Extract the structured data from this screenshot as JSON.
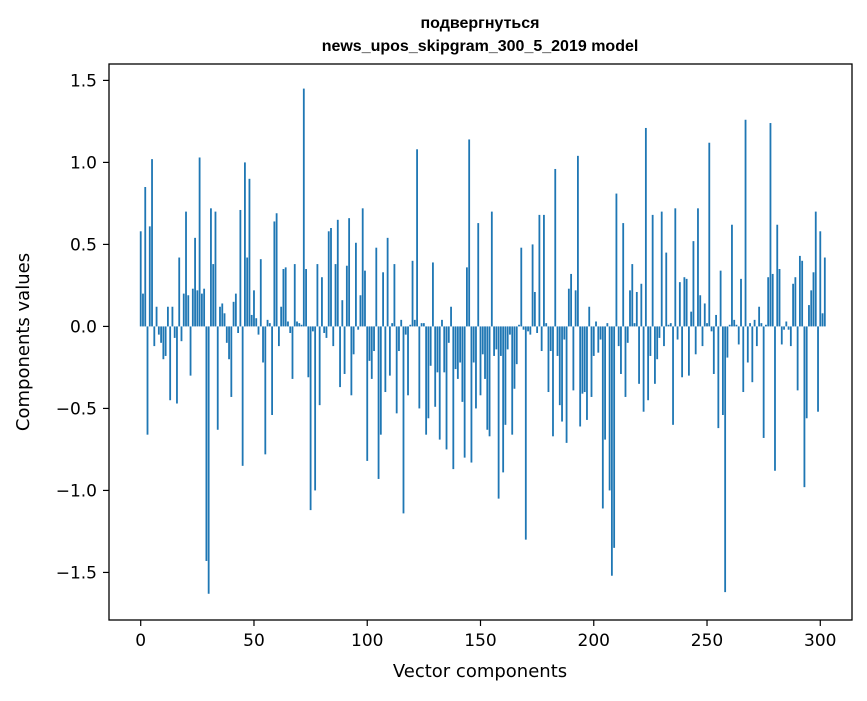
{
  "chart_data": {
    "type": "bar",
    "title_line1": "подвергнуться",
    "title_line2": "news_upos_skipgram_300_5_2019 model",
    "xlabel": "Vector components",
    "ylabel": "Components values",
    "xlim": [
      -14,
      314
    ],
    "ylim": [
      -1.79,
      1.6
    ],
    "xticks": [
      0,
      50,
      100,
      150,
      200,
      250,
      300
    ],
    "xtick_labels": [
      "0",
      "50",
      "100",
      "150",
      "200",
      "250",
      "300"
    ],
    "yticks": [
      -1.5,
      -1.0,
      -0.5,
      0.0,
      0.5,
      1.0,
      1.5
    ],
    "ytick_labels": [
      "−1.5",
      "−1.0",
      "−0.5",
      "0.0",
      "0.5",
      "1.0",
      "1.5"
    ],
    "grid": false,
    "bar_color": "#1f77b4",
    "values": [
      0.58,
      0.2,
      0.85,
      -0.66,
      0.61,
      1.02,
      -0.12,
      0.12,
      -0.05,
      -0.1,
      -0.2,
      -0.18,
      0.12,
      -0.45,
      0.12,
      -0.07,
      -0.47,
      0.42,
      -0.09,
      0.2,
      0.7,
      0.19,
      -0.3,
      0.23,
      0.54,
      0.22,
      1.03,
      0.2,
      0.23,
      -1.43,
      -1.63,
      0.72,
      0.38,
      0.7,
      -0.63,
      0.12,
      0.14,
      0.08,
      -0.1,
      -0.2,
      -0.43,
      0.15,
      0.2,
      -0.04,
      0.71,
      -0.85,
      1.0,
      0.42,
      0.9,
      0.07,
      0.22,
      0.05,
      -0.05,
      0.41,
      -0.22,
      -0.78,
      0.04,
      0.02,
      -0.54,
      0.64,
      0.69,
      -0.12,
      0.12,
      0.35,
      0.36,
      0.03,
      -0.04,
      -0.32,
      0.38,
      0.03,
      0.02,
      0.01,
      1.45,
      0.35,
      -0.31,
      -1.12,
      -0.03,
      -1.0,
      0.38,
      -0.48,
      0.3,
      -0.04,
      -0.07,
      0.58,
      0.6,
      -0.12,
      0.38,
      0.65,
      -0.37,
      0.16,
      -0.29,
      0.37,
      0.66,
      -0.42,
      -0.17,
      0.51,
      -0.02,
      0.19,
      0.72,
      0.34,
      -0.82,
      -0.21,
      -0.32,
      -0.15,
      0.48,
      -0.93,
      -0.66,
      0.33,
      -0.4,
      0.54,
      -0.3,
      0.02,
      0.38,
      -0.53,
      -0.15,
      0.04,
      -1.14,
      -0.05,
      -0.42,
      0.01,
      0.4,
      0.04,
      1.08,
      -0.5,
      0.02,
      0.02,
      -0.66,
      -0.56,
      -0.24,
      0.39,
      -0.49,
      -0.28,
      -0.69,
      0.04,
      -0.28,
      -0.75,
      -0.1,
      0.12,
      -0.87,
      -0.26,
      -0.32,
      -0.22,
      -0.46,
      -0.8,
      0.36,
      1.14,
      -0.83,
      -0.22,
      -0.5,
      0.63,
      -0.42,
      -0.17,
      -0.32,
      -0.63,
      -0.67,
      0.7,
      -0.18,
      -0.14,
      -1.05,
      -0.18,
      -0.89,
      -0.6,
      -0.14,
      -0.05,
      -0.66,
      -0.38,
      -0.23,
      0.01,
      0.48,
      -0.02,
      -1.3,
      -0.03,
      -0.05,
      0.5,
      0.21,
      -0.04,
      0.68,
      -0.15,
      0.68,
      0.02,
      -0.4,
      -0.15,
      -0.67,
      0.96,
      -0.18,
      -0.48,
      -0.58,
      -0.08,
      -0.71,
      0.23,
      0.32,
      -0.39,
      0.22,
      1.04,
      -0.61,
      -0.41,
      -0.4,
      -0.57,
      0.12,
      -0.43,
      -0.18,
      0.03,
      -0.16,
      -0.08,
      -1.11,
      -0.69,
      0.02,
      -1.0,
      -1.52,
      -1.35,
      0.81,
      -0.12,
      -0.29,
      0.63,
      -0.43,
      -0.1,
      0.22,
      0.38,
      0.02,
      0.21,
      -0.35,
      0.26,
      -0.52,
      1.21,
      -0.45,
      -0.18,
      0.68,
      -0.35,
      -0.2,
      -0.07,
      0.7,
      -0.12,
      0.45,
      0.01,
      0.02,
      -0.6,
      0.72,
      -0.08,
      0.27,
      -0.31,
      0.3,
      0.29,
      -0.3,
      0.09,
      0.52,
      -0.17,
      0.72,
      0.19,
      -0.12,
      0.14,
      0.02,
      1.12,
      -0.03,
      -0.29,
      0.07,
      -0.62,
      0.34,
      -0.54,
      -1.62,
      -0.19,
      0.01,
      0.62,
      0.04,
      0.01,
      -0.11,
      0.29,
      -0.4,
      1.26,
      -0.22,
      0.02,
      -0.34,
      0.04,
      -0.12,
      0.12,
      0.02,
      -0.68,
      0.01,
      0.3,
      1.24,
      0.32,
      -0.88,
      0.62,
      0.35,
      -0.11,
      -0.02,
      0.03,
      -0.02,
      -0.12,
      0.26,
      0.3,
      -0.39,
      0.43,
      0.4,
      -0.98,
      -0.56,
      0.13,
      0.22,
      0.33,
      0.7,
      -0.52,
      0.58,
      0.08,
      0.42
    ]
  }
}
